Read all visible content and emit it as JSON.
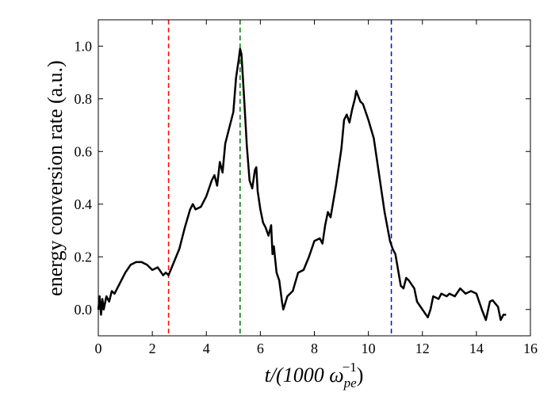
{
  "chart_data": {
    "type": "line",
    "xlabel": {
      "text": "t/(1000 ω",
      "sub": "pe",
      "sup": "−1",
      "close": ")"
    },
    "ylabel": "energy conversion rate (a.u.)",
    "xlim": [
      0,
      16
    ],
    "ylim": [
      -0.1,
      1.1
    ],
    "xticks": [
      0,
      2,
      4,
      6,
      8,
      10,
      12,
      14,
      16
    ],
    "yticks": [
      {
        "value": 0,
        "label": "0.0"
      },
      0.2,
      0.4,
      0.6,
      0.8,
      {
        "value": 1,
        "label": "1.0"
      }
    ],
    "vlines": [
      {
        "x": 2.6,
        "color": "#ff0000"
      },
      {
        "x": 5.25,
        "color": "#007700"
      },
      {
        "x": 10.85,
        "color": "#0000ff"
      }
    ],
    "series": [
      {
        "color": "#000000",
        "x": [
          0,
          0.05,
          0.1,
          0.15,
          0.2,
          0.3,
          0.4,
          0.5,
          0.6,
          0.8,
          1.0,
          1.2,
          1.4,
          1.6,
          1.8,
          2.0,
          2.2,
          2.4,
          2.5,
          2.6,
          2.8,
          3.0,
          3.2,
          3.4,
          3.5,
          3.6,
          3.8,
          4.0,
          4.2,
          4.3,
          4.4,
          4.5,
          4.6,
          4.7,
          4.8,
          5.0,
          5.1,
          5.2,
          5.25,
          5.3,
          5.4,
          5.5,
          5.6,
          5.7,
          5.8,
          5.85,
          5.9,
          6.0,
          6.1,
          6.2,
          6.3,
          6.4,
          6.45,
          6.5,
          6.6,
          6.7,
          6.8,
          6.85,
          7.0,
          7.2,
          7.4,
          7.6,
          7.8,
          8.0,
          8.2,
          8.3,
          8.4,
          8.5,
          8.6,
          8.8,
          9.0,
          9.1,
          9.2,
          9.3,
          9.4,
          9.5,
          9.55,
          9.7,
          9.8,
          10.0,
          10.2,
          10.4,
          10.6,
          10.8,
          10.9,
          11.0,
          11.1,
          11.2,
          11.3,
          11.4,
          11.5,
          11.7,
          11.8,
          12.0,
          12.2,
          12.3,
          12.4,
          12.6,
          12.7,
          12.9,
          13.0,
          13.2,
          13.4,
          13.6,
          13.8,
          14.0,
          14.2,
          14.35,
          14.5,
          14.6,
          14.8,
          14.9,
          15.0,
          15.1
        ],
        "values": [
          0.0,
          0.05,
          -0.02,
          0.04,
          0.0,
          0.05,
          0.03,
          0.07,
          0.06,
          0.1,
          0.14,
          0.17,
          0.18,
          0.18,
          0.17,
          0.15,
          0.16,
          0.13,
          0.14,
          0.13,
          0.18,
          0.23,
          0.31,
          0.38,
          0.4,
          0.38,
          0.39,
          0.43,
          0.49,
          0.51,
          0.47,
          0.56,
          0.52,
          0.63,
          0.67,
          0.75,
          0.88,
          0.95,
          0.99,
          0.97,
          0.8,
          0.62,
          0.49,
          0.46,
          0.53,
          0.54,
          0.45,
          0.38,
          0.33,
          0.31,
          0.28,
          0.32,
          0.21,
          0.24,
          0.14,
          0.11,
          0.03,
          0.0,
          0.05,
          0.07,
          0.14,
          0.15,
          0.2,
          0.26,
          0.27,
          0.25,
          0.32,
          0.37,
          0.35,
          0.47,
          0.61,
          0.72,
          0.74,
          0.71,
          0.76,
          0.8,
          0.83,
          0.79,
          0.78,
          0.72,
          0.65,
          0.51,
          0.37,
          0.26,
          0.23,
          0.21,
          0.15,
          0.09,
          0.08,
          0.12,
          0.11,
          0.08,
          0.03,
          0.0,
          -0.03,
          0.0,
          0.05,
          0.04,
          0.06,
          0.05,
          0.06,
          0.05,
          0.08,
          0.06,
          0.07,
          0.06,
          0.0,
          -0.04,
          0.03,
          0.035,
          0.01,
          -0.04,
          -0.02,
          -0.02
        ]
      }
    ]
  }
}
